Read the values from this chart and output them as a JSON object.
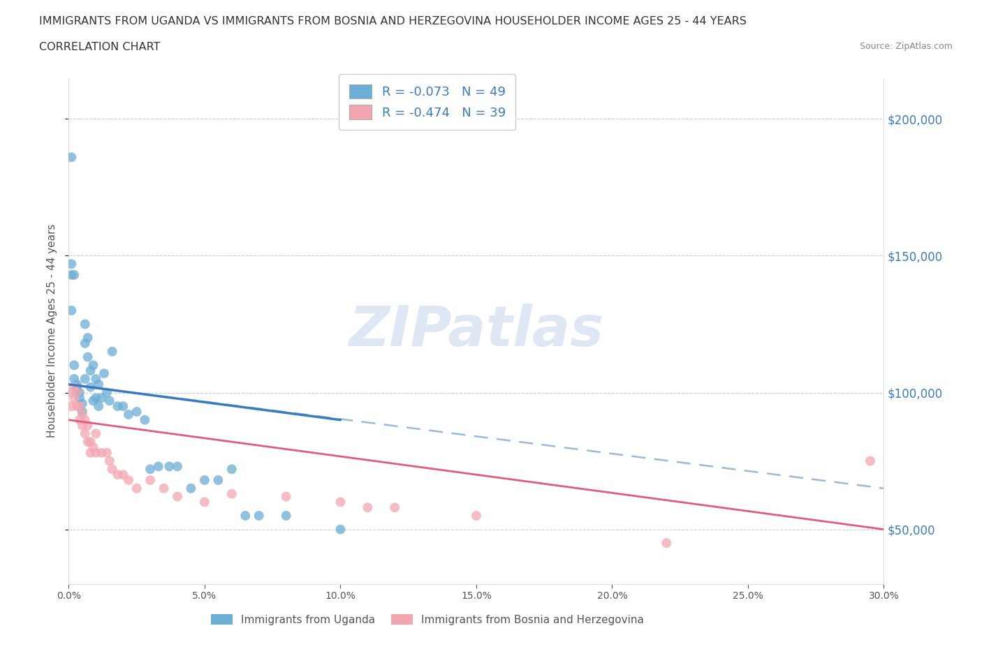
{
  "title_line1": "IMMIGRANTS FROM UGANDA VS IMMIGRANTS FROM BOSNIA AND HERZEGOVINA HOUSEHOLDER INCOME AGES 25 - 44 YEARS",
  "title_line2": "CORRELATION CHART",
  "source_text": "Source: ZipAtlas.com",
  "watermark": "ZIPatlas",
  "ylabel": "Householder Income Ages 25 - 44 years",
  "xlim": [
    0.0,
    0.3
  ],
  "ylim": [
    30000,
    215000
  ],
  "yticks": [
    50000,
    100000,
    150000,
    200000
  ],
  "xticks": [
    0.0,
    0.05,
    0.1,
    0.15,
    0.2,
    0.25,
    0.3
  ],
  "uganda_color": "#6baed6",
  "bosnia_color": "#f4a6b0",
  "uganda_line_color": "#3a7abf",
  "bosnia_line_color": "#e05c7a",
  "dashed_line_color": "#9ab8d8",
  "uganda_R": -0.073,
  "uganda_N": 49,
  "bosnia_R": -0.474,
  "bosnia_N": 39,
  "legend_label_uganda": "Immigrants from Uganda",
  "legend_label_bosnia": "Immigrants from Bosnia and Herzegovina",
  "r_text_color": "#3a7abf",
  "ylabel_color": "#555555",
  "ytick_color": "#3a7abf",
  "title_color": "#333333",
  "uganda_x": [
    0.001,
    0.001,
    0.001,
    0.001,
    0.002,
    0.002,
    0.002,
    0.003,
    0.003,
    0.003,
    0.004,
    0.004,
    0.005,
    0.005,
    0.006,
    0.006,
    0.006,
    0.007,
    0.007,
    0.008,
    0.008,
    0.009,
    0.009,
    0.01,
    0.01,
    0.011,
    0.011,
    0.012,
    0.013,
    0.014,
    0.015,
    0.016,
    0.018,
    0.02,
    0.022,
    0.025,
    0.028,
    0.03,
    0.033,
    0.037,
    0.04,
    0.045,
    0.05,
    0.055,
    0.06,
    0.065,
    0.07,
    0.08,
    0.1
  ],
  "uganda_y": [
    186000,
    147000,
    143000,
    130000,
    143000,
    110000,
    105000,
    103000,
    102000,
    100000,
    100000,
    98000,
    96000,
    93000,
    125000,
    118000,
    105000,
    120000,
    113000,
    108000,
    102000,
    110000,
    97000,
    105000,
    98000,
    103000,
    95000,
    98000,
    107000,
    100000,
    97000,
    115000,
    95000,
    95000,
    92000,
    93000,
    90000,
    72000,
    73000,
    73000,
    73000,
    65000,
    68000,
    68000,
    72000,
    55000,
    55000,
    55000,
    50000
  ],
  "bosnia_x": [
    0.001,
    0.001,
    0.002,
    0.002,
    0.003,
    0.003,
    0.004,
    0.004,
    0.005,
    0.005,
    0.006,
    0.006,
    0.007,
    0.007,
    0.008,
    0.008,
    0.009,
    0.01,
    0.01,
    0.012,
    0.014,
    0.015,
    0.016,
    0.018,
    0.02,
    0.022,
    0.025,
    0.03,
    0.035,
    0.04,
    0.05,
    0.06,
    0.08,
    0.1,
    0.11,
    0.12,
    0.15,
    0.22,
    0.295
  ],
  "bosnia_y": [
    100000,
    95000,
    102000,
    98000,
    100000,
    95000,
    95000,
    90000,
    92000,
    88000,
    90000,
    85000,
    88000,
    82000,
    82000,
    78000,
    80000,
    78000,
    85000,
    78000,
    78000,
    75000,
    72000,
    70000,
    70000,
    68000,
    65000,
    68000,
    65000,
    62000,
    60000,
    63000,
    62000,
    60000,
    58000,
    58000,
    55000,
    45000,
    75000
  ],
  "uganda_trend": [
    0.0,
    0.1,
    103000,
    90000
  ],
  "bosnia_trend": [
    0.0,
    0.3,
    90000,
    50000
  ],
  "dashed_trend": [
    0.0,
    0.3,
    103000,
    65000
  ]
}
